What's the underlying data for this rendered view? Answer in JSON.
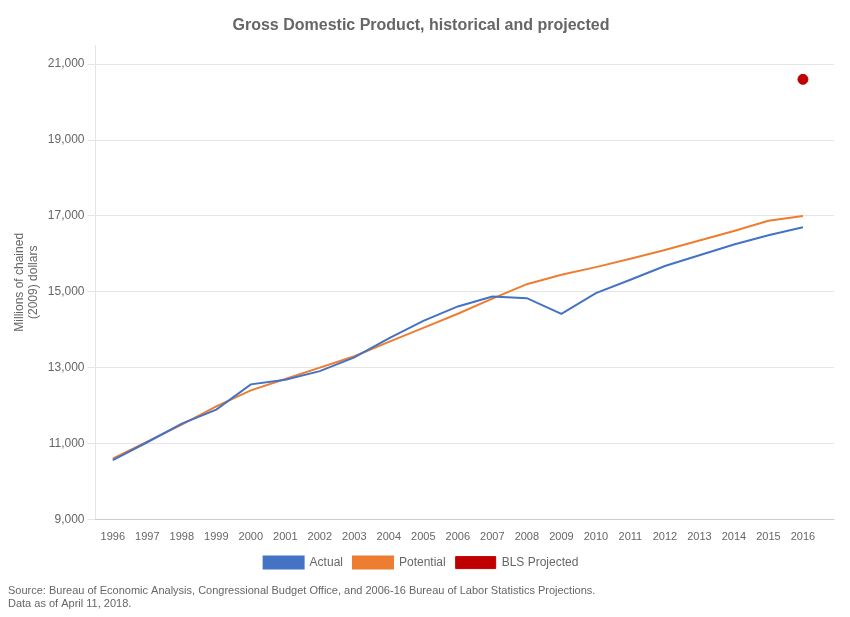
{
  "chart_data": {
    "type": "line",
    "title": "Gross Domestic Product, historical and projected",
    "ylabel": "Millions of chained\n(2009) dollars",
    "annotations": [
      "Source: Bureau of Economic Analysis, Congressional Budget Office, and 2006-16 Bureau of Labor Statistics Projections.\nData as of April 11, 2018."
    ],
    "x": [
      1996,
      1997,
      1998,
      1999,
      2000,
      2001,
      2002,
      2003,
      2004,
      2005,
      2006,
      2007,
      2008,
      2009,
      2010,
      2011,
      2012,
      2013,
      2014,
      2015,
      2016
    ],
    "series": [
      {
        "name": "Actual",
        "color": "#4472C4",
        "type": "line",
        "values": [
          10561,
          11034,
          11526,
          11894,
          12560,
          12682,
          12909,
          13271,
          13774,
          14234,
          14614,
          14874,
          14831,
          14419,
          14964,
          15318,
          15679,
          15961,
          16247,
          16490,
          16700
        ]
      },
      {
        "name": "Potential",
        "color": "#ED7D31",
        "type": "line",
        "values": [
          10600,
          11050,
          11500,
          11980,
          12400,
          12700,
          13000,
          13300,
          13680,
          14050,
          14420,
          14820,
          15200,
          15450,
          15650,
          15870,
          16100,
          16350,
          16600,
          16870,
          17000
        ]
      },
      {
        "name": "BLS Projected",
        "color": "#C00000",
        "type": "scatter",
        "marker": "circle",
        "x": [
          2016
        ],
        "values": [
          20600
        ]
      }
    ],
    "xlim": [
      1995.5,
      2016.9
    ],
    "xticks": [
      1996,
      1997,
      1998,
      1999,
      2000,
      2001,
      2002,
      2003,
      2004,
      2005,
      2006,
      2007,
      2008,
      2009,
      2010,
      2011,
      2012,
      2013,
      2014,
      2015,
      2016
    ],
    "ylim": [
      9000,
      21500
    ],
    "yticks": [
      {
        "value": 9000,
        "label": "9,000"
      },
      {
        "value": 11000,
        "label": "11,000"
      },
      {
        "value": 13000,
        "label": "13,000"
      },
      {
        "value": 15000,
        "label": "15,000"
      },
      {
        "value": 17000,
        "label": "17,000"
      },
      {
        "value": 19000,
        "label": "19,000"
      },
      {
        "value": 21000,
        "label": "21,000"
      }
    ],
    "grid": "y",
    "legend": "bottom"
  }
}
